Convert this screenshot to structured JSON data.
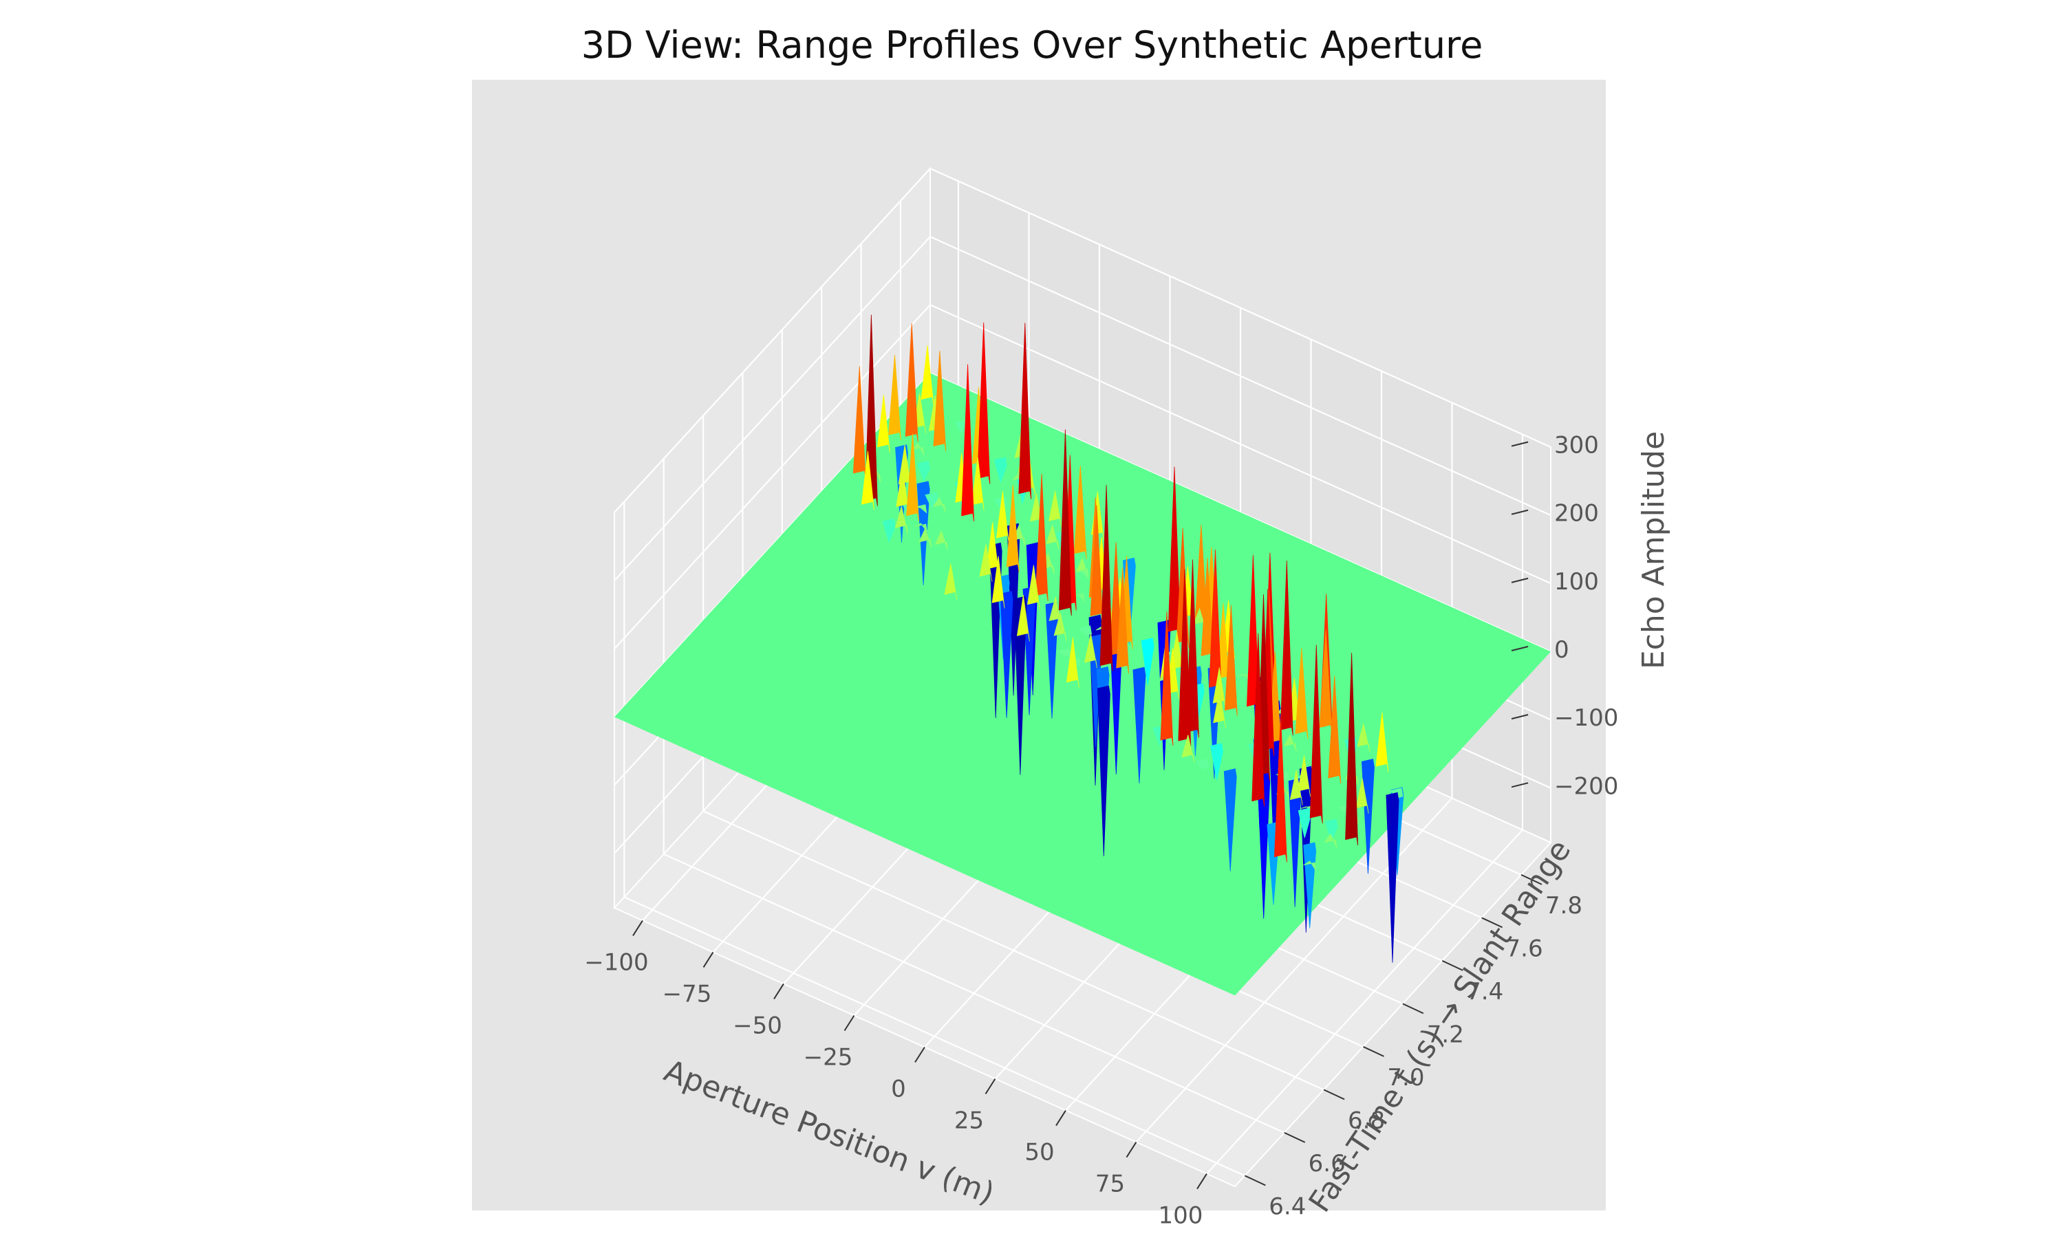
{
  "chart_data": {
    "type": "surface",
    "title": "3D View: Range Profiles Over Synthetic Aperture",
    "xlabel": "Aperture Position v (m)",
    "ylabel": "Fast-Time t (s) → Slant Range",
    "zlabel": "Echo Amplitude",
    "x_ticks": [
      "−100",
      "−75",
      "−50",
      "−25",
      "0",
      "25",
      "50",
      "75",
      "100"
    ],
    "y_ticks": [
      "6.4",
      "6.6",
      "6.8",
      "7.0",
      "7.2",
      "7.4",
      "7.6",
      "7.8"
    ],
    "z_ticks": [
      "−200",
      "−100",
      "0",
      "100",
      "200",
      "300"
    ],
    "xlim": [
      -110,
      110
    ],
    "ylim": [
      6.35,
      7.95
    ],
    "zlim": [
      -280,
      300
    ],
    "colormap": "jet",
    "baseline_value": 0,
    "peak_echo_amplitude": 300,
    "min_echo_amplitude": -280,
    "echo_band_fast_time": [
      7.0,
      7.7
    ],
    "grid": true
  },
  "colors": {
    "pane": "#e5e5e5",
    "pane_floor": "#ebebeb",
    "grid": "#ffffff",
    "surface_base": "#5cff8f"
  }
}
